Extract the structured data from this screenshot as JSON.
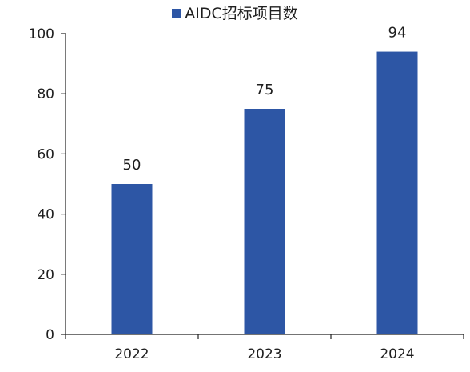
{
  "chart_data": {
    "type": "bar",
    "title": "",
    "xlabel": "",
    "ylabel": "",
    "categories": [
      "2022",
      "2023",
      "2024"
    ],
    "series": [
      {
        "name": "AIDC招标项目数",
        "values": [
          50,
          75,
          94
        ],
        "color": "#2d56a5"
      }
    ],
    "data_labels": [
      "50",
      "75",
      "94"
    ],
    "ylim": [
      0,
      100
    ],
    "yticks": [
      0,
      20,
      40,
      60,
      80,
      100
    ],
    "ytick_labels": [
      "0",
      "20",
      "40",
      "60",
      "80",
      "100"
    ],
    "grid": false,
    "legend_position": "top-center"
  }
}
